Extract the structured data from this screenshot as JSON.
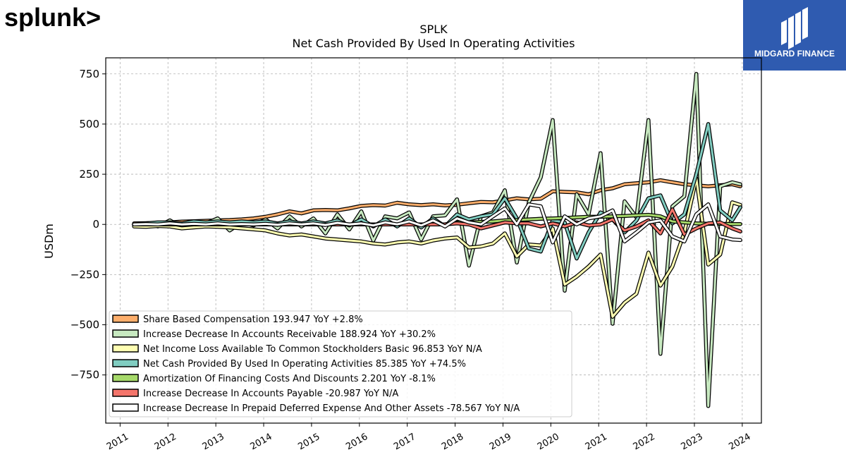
{
  "brand": {
    "left_logo_text": "splunk>",
    "right_logo_text": "MIDGARD FINANCE"
  },
  "chart_data": {
    "type": "line",
    "title": "SPLK",
    "subtitle": "Net Cash Provided By Used In Operating Activities",
    "xlabel": "",
    "ylabel": "USDm",
    "xlim": [
      2010.7,
      2024.4
    ],
    "ylim": [
      -990,
      830
    ],
    "yticks": [
      750,
      500,
      250,
      0,
      -250,
      -500,
      -750
    ],
    "ytick_labels": [
      "750",
      "500",
      "250",
      "0",
      "−250",
      "−500",
      "−750"
    ],
    "xticks": [
      2011,
      2012,
      2013,
      2014,
      2015,
      2016,
      2017,
      2018,
      2019,
      2020,
      2021,
      2022,
      2023,
      2024
    ],
    "grid": true,
    "legend_position": "lower-left",
    "x": [
      2011.29,
      2011.54,
      2011.79,
      2012.04,
      2012.29,
      2012.54,
      2012.79,
      2013.04,
      2013.29,
      2013.54,
      2013.79,
      2014.04,
      2014.29,
      2014.54,
      2014.79,
      2015.04,
      2015.29,
      2015.54,
      2015.79,
      2016.04,
      2016.29,
      2016.54,
      2016.79,
      2017.04,
      2017.29,
      2017.54,
      2017.79,
      2018.04,
      2018.29,
      2018.54,
      2018.79,
      2019.04,
      2019.29,
      2019.54,
      2019.79,
      2020.04,
      2020.29,
      2020.54,
      2020.79,
      2021.04,
      2021.29,
      2021.54,
      2021.79,
      2022.04,
      2022.29,
      2022.54,
      2022.79,
      2023.04,
      2023.29,
      2023.54,
      2023.79,
      2023.96
    ],
    "series": [
      {
        "name": "Share Based Compensation",
        "legend": "Share Based Compensation  193.947 YoY +2.8%",
        "color": "#fdae6b",
        "values": [
          5,
          6,
          8,
          10,
          14,
          16,
          18,
          20,
          22,
          25,
          30,
          38,
          50,
          65,
          55,
          70,
          72,
          70,
          80,
          92,
          96,
          94,
          108,
          100,
          96,
          100,
          95,
          98,
          105,
          112,
          110,
          120,
          130,
          125,
          128,
          165,
          162,
          160,
          150,
          170,
          180,
          200,
          205,
          210,
          220,
          210,
          200,
          195,
          190,
          195,
          200,
          190
        ]
      },
      {
        "name": "Increase Decrease In Accounts Receivable",
        "legend": "Increase Decrease In Accounts Receivable  188.924 YoY +30.2%",
        "color": "#c7e9c0",
        "values": [
          -5,
          5,
          -10,
          20,
          -15,
          10,
          5,
          30,
          -30,
          10,
          -5,
          25,
          -20,
          40,
          -10,
          30,
          -45,
          50,
          -25,
          65,
          -80,
          40,
          30,
          60,
          -75,
          40,
          45,
          125,
          -205,
          40,
          60,
          170,
          -190,
          110,
          235,
          520,
          -330,
          150,
          50,
          355,
          -495,
          115,
          35,
          520,
          -645,
          90,
          140,
          750,
          -905,
          190,
          210,
          200
        ]
      },
      {
        "name": "Net Income Loss Available To Common Stockholders Basic",
        "legend": "Net Income Loss Available To Common Stockholders Basic  96.853 YoY N/A",
        "color": "#ffffb2",
        "values": [
          -10,
          -12,
          -8,
          -10,
          -20,
          -15,
          -10,
          -12,
          -15,
          -20,
          -25,
          -30,
          -45,
          -55,
          -50,
          -60,
          -70,
          -75,
          -80,
          -85,
          -95,
          -100,
          -90,
          -85,
          -95,
          -80,
          -70,
          -65,
          -115,
          -110,
          -95,
          -45,
          -160,
          -100,
          -105,
          -20,
          -300,
          -260,
          -210,
          -150,
          -460,
          -390,
          -345,
          -140,
          -305,
          -210,
          -40,
          230,
          -200,
          -150,
          110,
          97
        ]
      },
      {
        "name": "Net Cash Provided By Used In Operating Activities",
        "legend": "Net Cash Provided By Used In Operating Activities  85.385 YoY +74.5%",
        "color": "#80cdc1",
        "values": [
          0,
          5,
          10,
          10,
          5,
          15,
          10,
          15,
          10,
          15,
          10,
          15,
          5,
          15,
          5,
          15,
          5,
          20,
          -5,
          25,
          -10,
          25,
          -10,
          30,
          -15,
          30,
          -10,
          50,
          25,
          40,
          50,
          130,
          30,
          -120,
          -135,
          20,
          10,
          -170,
          -40,
          60,
          25,
          -40,
          20,
          130,
          145,
          5,
          50,
          250,
          500,
          70,
          20,
          85
        ]
      },
      {
        "name": "Amortization Of Financing Costs And Discounts",
        "legend": "Amortization Of Financing Costs And Discounts  2.201 YoY -8.1%",
        "color": "#a6d96a",
        "values": [
          0,
          0,
          0,
          0,
          0,
          0,
          0,
          0,
          0,
          0,
          0,
          0,
          0,
          0,
          0,
          0,
          0,
          0,
          0,
          0,
          0,
          0,
          0,
          0,
          0,
          0,
          0,
          10,
          10,
          12,
          15,
          20,
          22,
          25,
          28,
          30,
          32,
          35,
          38,
          38,
          40,
          42,
          45,
          48,
          40,
          15,
          10,
          5,
          3,
          3,
          2,
          2
        ]
      },
      {
        "name": "Increase Decrease In Accounts Payable",
        "legend": "Increase Decrease In Accounts Payable  -20.987 YoY N/A",
        "color": "#f4756b",
        "values": [
          0,
          0,
          0,
          0,
          0,
          0,
          0,
          0,
          0,
          0,
          0,
          0,
          0,
          0,
          0,
          0,
          0,
          0,
          0,
          0,
          0,
          0,
          0,
          0,
          0,
          0,
          0,
          5,
          0,
          -20,
          -5,
          10,
          5,
          5,
          -10,
          5,
          -10,
          10,
          -5,
          0,
          25,
          -30,
          -10,
          20,
          -45,
          75,
          -50,
          -20,
          5,
          10,
          -20,
          -35
        ]
      },
      {
        "name": "Increase Decrease In Prepaid Deferred Expense And Other Assets",
        "legend": "Increase Decrease In Prepaid Deferred Expense And Other Assets  -78.567 YoY N/A",
        "color": "#ffffff",
        "values": [
          0,
          2,
          0,
          5,
          0,
          3,
          0,
          5,
          0,
          2,
          0,
          3,
          -2,
          5,
          0,
          5,
          -3,
          8,
          0,
          5,
          -5,
          10,
          0,
          15,
          -5,
          20,
          -10,
          30,
          10,
          0,
          40,
          80,
          0,
          100,
          90,
          -90,
          40,
          0,
          30,
          40,
          70,
          -85,
          -40,
          10,
          20,
          -60,
          -85,
          50,
          100,
          -60,
          -75,
          -78
        ]
      }
    ]
  }
}
